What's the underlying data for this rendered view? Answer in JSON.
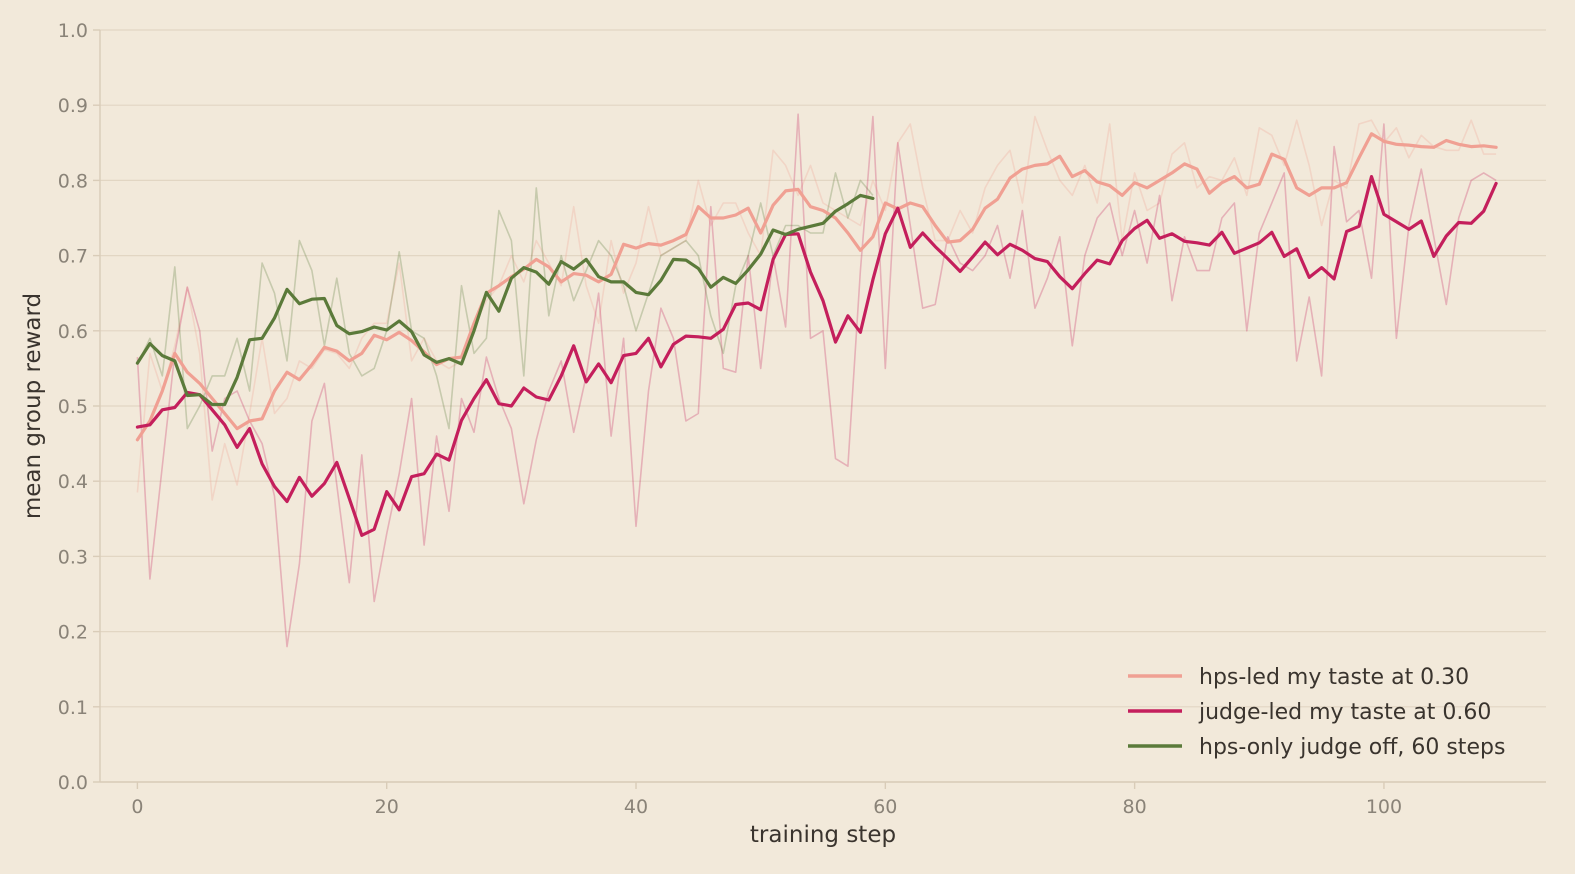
{
  "chart_data": {
    "type": "line",
    "title": "",
    "xlabel": "training step",
    "ylabel": "mean group reward",
    "xlim": [
      -3,
      113
    ],
    "ylim": [
      0,
      1.0
    ],
    "x_ticks": [
      0,
      20,
      40,
      60,
      80,
      100
    ],
    "y_ticks": [
      0.0,
      0.1,
      0.2,
      0.3,
      0.4,
      0.5,
      0.6,
      0.7,
      0.8,
      0.9,
      1.0
    ],
    "x_tick_labels": [
      "0",
      "20",
      "40",
      "60",
      "80",
      "100"
    ],
    "y_tick_labels": [
      "0.0",
      "0.1",
      "0.2",
      "0.3",
      "0.4",
      "0.5",
      "0.6",
      "0.7",
      "0.8",
      "0.9",
      "1.0"
    ],
    "grid": "horizontal",
    "legend_position": "bottom-right",
    "series": [
      {
        "key": "hps_led",
        "name": "hps-led",
        "note": "my taste at 0.30",
        "color": "#f0a093",
        "smoothed": [
          0.455,
          0.48,
          0.52,
          0.57,
          0.545,
          0.53,
          0.51,
          0.49,
          0.47,
          0.48,
          0.483,
          0.52,
          0.545,
          0.535,
          0.555,
          0.578,
          0.573,
          0.56,
          0.57,
          0.594,
          0.588,
          0.598,
          0.587,
          0.572,
          0.555,
          0.563,
          0.565,
          0.61,
          0.65,
          0.66,
          0.672,
          0.682,
          0.695,
          0.685,
          0.665,
          0.676,
          0.674,
          0.665,
          0.675,
          0.715,
          0.71,
          0.716,
          0.714,
          0.72,
          0.728,
          0.765,
          0.75,
          0.75,
          0.754,
          0.763,
          0.73,
          0.767,
          0.786,
          0.788,
          0.765,
          0.76,
          0.75,
          0.73,
          0.707,
          0.725,
          0.77,
          0.762,
          0.77,
          0.765,
          0.74,
          0.718,
          0.72,
          0.735,
          0.763,
          0.775,
          0.803,
          0.815,
          0.82,
          0.822,
          0.832,
          0.805,
          0.813,
          0.798,
          0.793,
          0.78,
          0.797,
          0.79,
          0.8,
          0.81,
          0.822,
          0.815,
          0.783,
          0.797,
          0.805,
          0.79,
          0.795,
          0.835,
          0.828,
          0.79,
          0.78,
          0.79,
          0.79,
          0.797,
          0.83,
          0.862,
          0.852,
          0.848,
          0.847,
          0.845,
          0.844,
          0.853,
          0.848,
          0.845,
          0.846,
          0.844
        ],
        "raw": [
          0.385,
          0.57,
          0.52,
          0.58,
          0.658,
          0.57,
          0.375,
          0.45,
          0.395,
          0.49,
          0.59,
          0.49,
          0.51,
          0.56,
          0.55,
          0.575,
          0.57,
          0.55,
          0.59,
          0.61,
          0.61,
          0.69,
          0.56,
          0.59,
          0.56,
          0.55,
          0.56,
          0.605,
          0.64,
          0.66,
          0.7,
          0.665,
          0.72,
          0.69,
          0.66,
          0.765,
          0.66,
          0.61,
          0.72,
          0.65,
          0.69,
          0.765,
          0.7,
          0.71,
          0.72,
          0.8,
          0.74,
          0.77,
          0.77,
          0.73,
          0.7,
          0.84,
          0.82,
          0.78,
          0.82,
          0.77,
          0.76,
          0.75,
          0.74,
          0.8,
          0.76,
          0.85,
          0.875,
          0.79,
          0.72,
          0.72,
          0.76,
          0.73,
          0.79,
          0.82,
          0.84,
          0.77,
          0.885,
          0.84,
          0.8,
          0.78,
          0.82,
          0.77,
          0.875,
          0.72,
          0.81,
          0.76,
          0.77,
          0.835,
          0.85,
          0.79,
          0.805,
          0.8,
          0.83,
          0.78,
          0.87,
          0.86,
          0.82,
          0.88,
          0.82,
          0.74,
          0.8,
          0.79,
          0.875,
          0.88,
          0.85,
          0.87,
          0.83,
          0.86,
          0.845,
          0.84,
          0.84,
          0.88,
          0.835,
          0.835
        ]
      },
      {
        "key": "judge_led",
        "name": "judge-led",
        "note": "my taste at 0.60",
        "color": "#c41f5c",
        "smoothed": [
          0.472,
          0.475,
          0.495,
          0.498,
          0.518,
          0.515,
          0.495,
          0.475,
          0.445,
          0.47,
          0.423,
          0.393,
          0.373,
          0.405,
          0.38,
          0.397,
          0.425,
          0.377,
          0.328,
          0.336,
          0.386,
          0.362,
          0.406,
          0.41,
          0.436,
          0.428,
          0.481,
          0.51,
          0.535,
          0.503,
          0.5,
          0.524,
          0.512,
          0.508,
          0.54,
          0.58,
          0.532,
          0.556,
          0.531,
          0.567,
          0.57,
          0.59,
          0.552,
          0.582,
          0.593,
          0.592,
          0.59,
          0.602,
          0.635,
          0.637,
          0.628,
          0.695,
          0.728,
          0.729,
          0.678,
          0.64,
          0.585,
          0.62,
          0.598,
          0.668,
          0.729,
          0.763,
          0.711,
          0.73,
          0.712,
          0.696,
          0.679,
          0.698,
          0.718,
          0.701,
          0.715,
          0.707,
          0.696,
          0.692,
          0.672,
          0.656,
          0.676,
          0.694,
          0.689,
          0.72,
          0.736,
          0.747,
          0.723,
          0.729,
          0.719,
          0.717,
          0.714,
          0.731,
          0.703,
          0.71,
          0.717,
          0.731,
          0.699,
          0.709,
          0.671,
          0.684,
          0.669,
          0.732,
          0.739,
          0.805,
          0.755,
          0.745,
          0.735,
          0.746,
          0.699,
          0.726,
          0.744,
          0.743,
          0.759,
          0.796
        ],
        "raw": [
          0.565,
          0.27,
          0.42,
          0.57,
          0.658,
          0.6,
          0.44,
          0.51,
          0.52,
          0.48,
          0.45,
          0.38,
          0.18,
          0.29,
          0.48,
          0.53,
          0.395,
          0.265,
          0.435,
          0.24,
          0.33,
          0.41,
          0.51,
          0.315,
          0.46,
          0.36,
          0.51,
          0.465,
          0.565,
          0.51,
          0.47,
          0.37,
          0.455,
          0.52,
          0.56,
          0.465,
          0.54,
          0.65,
          0.46,
          0.59,
          0.34,
          0.52,
          0.63,
          0.59,
          0.48,
          0.49,
          0.765,
          0.55,
          0.545,
          0.7,
          0.55,
          0.7,
          0.605,
          0.888,
          0.59,
          0.6,
          0.43,
          0.42,
          0.68,
          0.885,
          0.55,
          0.85,
          0.74,
          0.63,
          0.635,
          0.725,
          0.69,
          0.68,
          0.7,
          0.74,
          0.67,
          0.76,
          0.63,
          0.67,
          0.725,
          0.58,
          0.7,
          0.75,
          0.77,
          0.7,
          0.76,
          0.69,
          0.78,
          0.64,
          0.725,
          0.68,
          0.68,
          0.75,
          0.77,
          0.6,
          0.73,
          0.77,
          0.81,
          0.56,
          0.645,
          0.54,
          0.845,
          0.745,
          0.76,
          0.67,
          0.875,
          0.59,
          0.74,
          0.815,
          0.725,
          0.635,
          0.75,
          0.8,
          0.81,
          0.8
        ]
      },
      {
        "key": "hps_only",
        "name": "hps-only",
        "note": "judge off, 60 steps",
        "color": "#5b7a3a",
        "smoothed": [
          0.557,
          0.583,
          0.567,
          0.56,
          0.514,
          0.515,
          0.502,
          0.502,
          0.538,
          0.588,
          0.59,
          0.617,
          0.655,
          0.636,
          0.642,
          0.643,
          0.607,
          0.596,
          0.599,
          0.605,
          0.601,
          0.613,
          0.599,
          0.568,
          0.558,
          0.563,
          0.556,
          0.6,
          0.651,
          0.626,
          0.67,
          0.684,
          0.678,
          0.662,
          0.692,
          0.682,
          0.695,
          0.672,
          0.665,
          0.665,
          0.651,
          0.648,
          0.667,
          0.695,
          0.694,
          0.683,
          0.658,
          0.671,
          0.663,
          0.681,
          0.702,
          0.734,
          0.728,
          0.735,
          0.739,
          0.743,
          0.759,
          0.769,
          0.78,
          0.776
        ],
        "raw": [
          0.555,
          0.59,
          0.54,
          0.685,
          0.47,
          0.5,
          0.54,
          0.54,
          0.59,
          0.52,
          0.69,
          0.65,
          0.56,
          0.72,
          0.68,
          0.58,
          0.67,
          0.57,
          0.54,
          0.55,
          0.6,
          0.705,
          0.6,
          0.59,
          0.54,
          0.47,
          0.66,
          0.57,
          0.59,
          0.76,
          0.72,
          0.54,
          0.79,
          0.62,
          0.7,
          0.64,
          0.68,
          0.72,
          0.7,
          0.66,
          0.6,
          0.65,
          0.7,
          0.71,
          0.72,
          0.7,
          0.62,
          0.57,
          0.66,
          0.7,
          0.77,
          0.7,
          0.74,
          0.74,
          0.73,
          0.73,
          0.81,
          0.75,
          0.8,
          0.78
        ]
      }
    ]
  }
}
